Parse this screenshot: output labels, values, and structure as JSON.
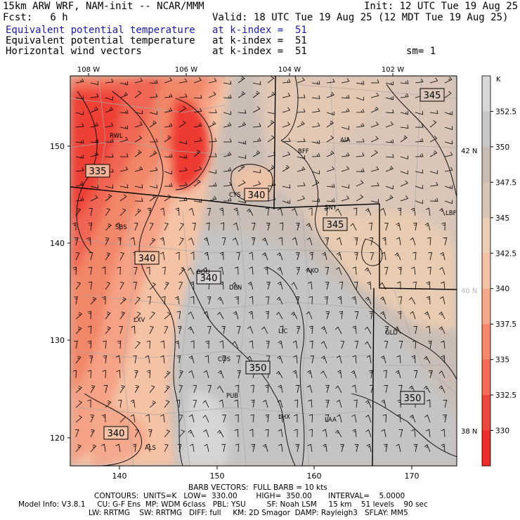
{
  "header": {
    "model": "15km ARW WRF, NAM-init -- NCAR/MMM",
    "init": "Init: 12 UTC Tue 19 Aug 25",
    "fcst": "Fcst:   6 h",
    "valid": "Valid: 18 UTC Tue 19 Aug 25 (12 MDT Tue 19 Aug 25)",
    "rows": [
      {
        "name": "Equivalent potential temperature",
        "level": "at k-index =  51",
        "extra": ""
      },
      {
        "name": "Equivalent potential temperature",
        "level": "at k-index =  51",
        "extra": ""
      },
      {
        "name": "Horizontal wind vectors",
        "level": "at k-index =  51",
        "extra": "sm= 1"
      }
    ]
  },
  "map": {
    "top_lon_labels": [
      "108 W",
      "106 W",
      "104 W",
      "102 W"
    ],
    "bottom_x_labels": [
      "140",
      "150",
      "160",
      "170"
    ],
    "left_y_labels": [
      "150",
      "140",
      "130",
      "120"
    ],
    "right_lat_labels": [
      {
        "text": "42 N",
        "color": "#000000"
      },
      {
        "text": "40 N",
        "color": "#b8b8b8"
      },
      {
        "text": "38 N",
        "color": "#000000"
      }
    ],
    "stations": [
      "RWL",
      "CYS",
      "BFF",
      "AIA",
      "SNY",
      "LBF",
      "SBS",
      "BOU",
      "DEN",
      "AKO",
      "LXV",
      "LIC",
      "GLD",
      "COS",
      "PUB",
      "LHX",
      "LAA",
      "ALS"
    ],
    "contour_labels": [
      "335",
      "340",
      "345",
      "340",
      "345",
      "340",
      "345",
      "350",
      "350",
      "340"
    ]
  },
  "colorbar": {
    "unit": "K",
    "labels": [
      "352.5",
      "350",
      "347.5",
      "345",
      "342.5",
      "340",
      "337.5",
      "335",
      "332.5",
      "330"
    ],
    "colors": [
      "#d8d8d8",
      "#c8c8c8",
      "#c9bdb5",
      "#d9c3b4",
      "#ecccb2",
      "#f6c2a4",
      "#f7a88a",
      "#f5876c",
      "#f36a55",
      "#f0473d",
      "#ef2e2b"
    ]
  },
  "footer": {
    "line1": "BARB VECTORS:  FULL BARB = 10 kts",
    "line2": "CONTOURS:  UNITS=K   LOW=  330.00        HIGH=  350.00       INTERVAL=    5.0000",
    "line3": "Model Info: V3.8.1     CU: G-F Ens  MP: WDM 6class   PBL: YSU         SF: Noah LSM     15 km    51 levels    90 sec",
    "line4": "LW: RRTMG    SW: RRTMG   DIFF: full     KM: 2D Smagor  DAMP: Rayleigh3   SFLAY: MM5"
  }
}
